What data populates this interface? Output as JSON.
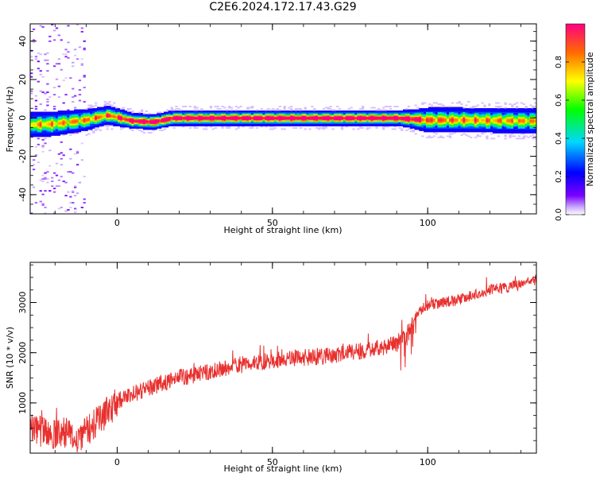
{
  "figure_title": "C2E6.2024.172.17.43.G29",
  "colors": {
    "snr_line": "#e8302e",
    "colormap": [
      "#ffffff",
      "#c9a8ff",
      "#7a00ff",
      "#0000ff",
      "#00d8ff",
      "#00ff00",
      "#ffff00",
      "#ff6a00",
      "#ff0080"
    ]
  },
  "chart_data": [
    {
      "type": "heatmap",
      "title": "",
      "xlabel": "Height of straight line (km)",
      "ylabel": "Frequency (Hz)",
      "xlim": [
        -28,
        135
      ],
      "ylim": [
        -50,
        49
      ],
      "x_ticks": [
        "0",
        "50",
        "100"
      ],
      "y_ticks": [
        "-40",
        "-20",
        "0",
        "20",
        "40"
      ],
      "colorbar": {
        "label": "Normalized spectral amplitude",
        "range": [
          0,
          1
        ],
        "ticks": [
          "0.0",
          "0.2",
          "0.4",
          "0.6",
          "0.8"
        ]
      },
      "ridge": {
        "x": [
          -28,
          -20,
          -10,
          -3,
          0,
          5,
          12,
          18,
          30,
          50,
          70,
          90,
          95,
          100,
          110,
          135
        ],
        "frequency_center": [
          -3.5,
          -3,
          -1,
          1.5,
          0.5,
          -1.5,
          -2,
          0,
          0,
          0,
          0,
          0,
          -0.5,
          -1,
          -1,
          -1.5
        ],
        "peak_amplitude": [
          0.6,
          0.6,
          0.65,
          0.7,
          0.75,
          0.9,
          0.95,
          0.95,
          0.95,
          0.95,
          0.95,
          0.95,
          0.9,
          0.7,
          0.65,
          0.6
        ],
        "half_width_hz": [
          4,
          4,
          3.5,
          3,
          3,
          2.5,
          2.5,
          2.5,
          2.5,
          2.5,
          2.5,
          2.5,
          3,
          4,
          4,
          4
        ]
      },
      "noise_region_x": [
        -28,
        -10
      ]
    },
    {
      "type": "line",
      "title": "",
      "xlabel": "Height of straight line (km)",
      "ylabel": "SNR (10 * v/v)",
      "xlim": [
        -28,
        135
      ],
      "ylim": [
        0,
        3800
      ],
      "x_ticks": [
        "0",
        "50",
        "100"
      ],
      "y_ticks": [
        "1000",
        "2000",
        "3000"
      ],
      "series": [
        {
          "x": [
            -28,
            -25,
            -22,
            -20,
            -18,
            -15,
            -12,
            -10,
            -8,
            -5,
            -2,
            0,
            3,
            6,
            10,
            15,
            20,
            25,
            30,
            35,
            40,
            45,
            50,
            55,
            60,
            65,
            70,
            75,
            80,
            85,
            88,
            90,
            92,
            94,
            96,
            98,
            100,
            105,
            110,
            115,
            120,
            125,
            130,
            135
          ],
          "values": [
            550,
            450,
            380,
            350,
            420,
            350,
            300,
            420,
            550,
            700,
            900,
            1050,
            1100,
            1200,
            1300,
            1400,
            1500,
            1560,
            1620,
            1700,
            1760,
            1800,
            1850,
            1880,
            1900,
            1930,
            1960,
            2000,
            2050,
            2100,
            2150,
            2200,
            2300,
            2450,
            2700,
            2850,
            2950,
            3000,
            3050,
            3150,
            3250,
            3300,
            3350,
            3450
          ]
        }
      ]
    }
  ]
}
